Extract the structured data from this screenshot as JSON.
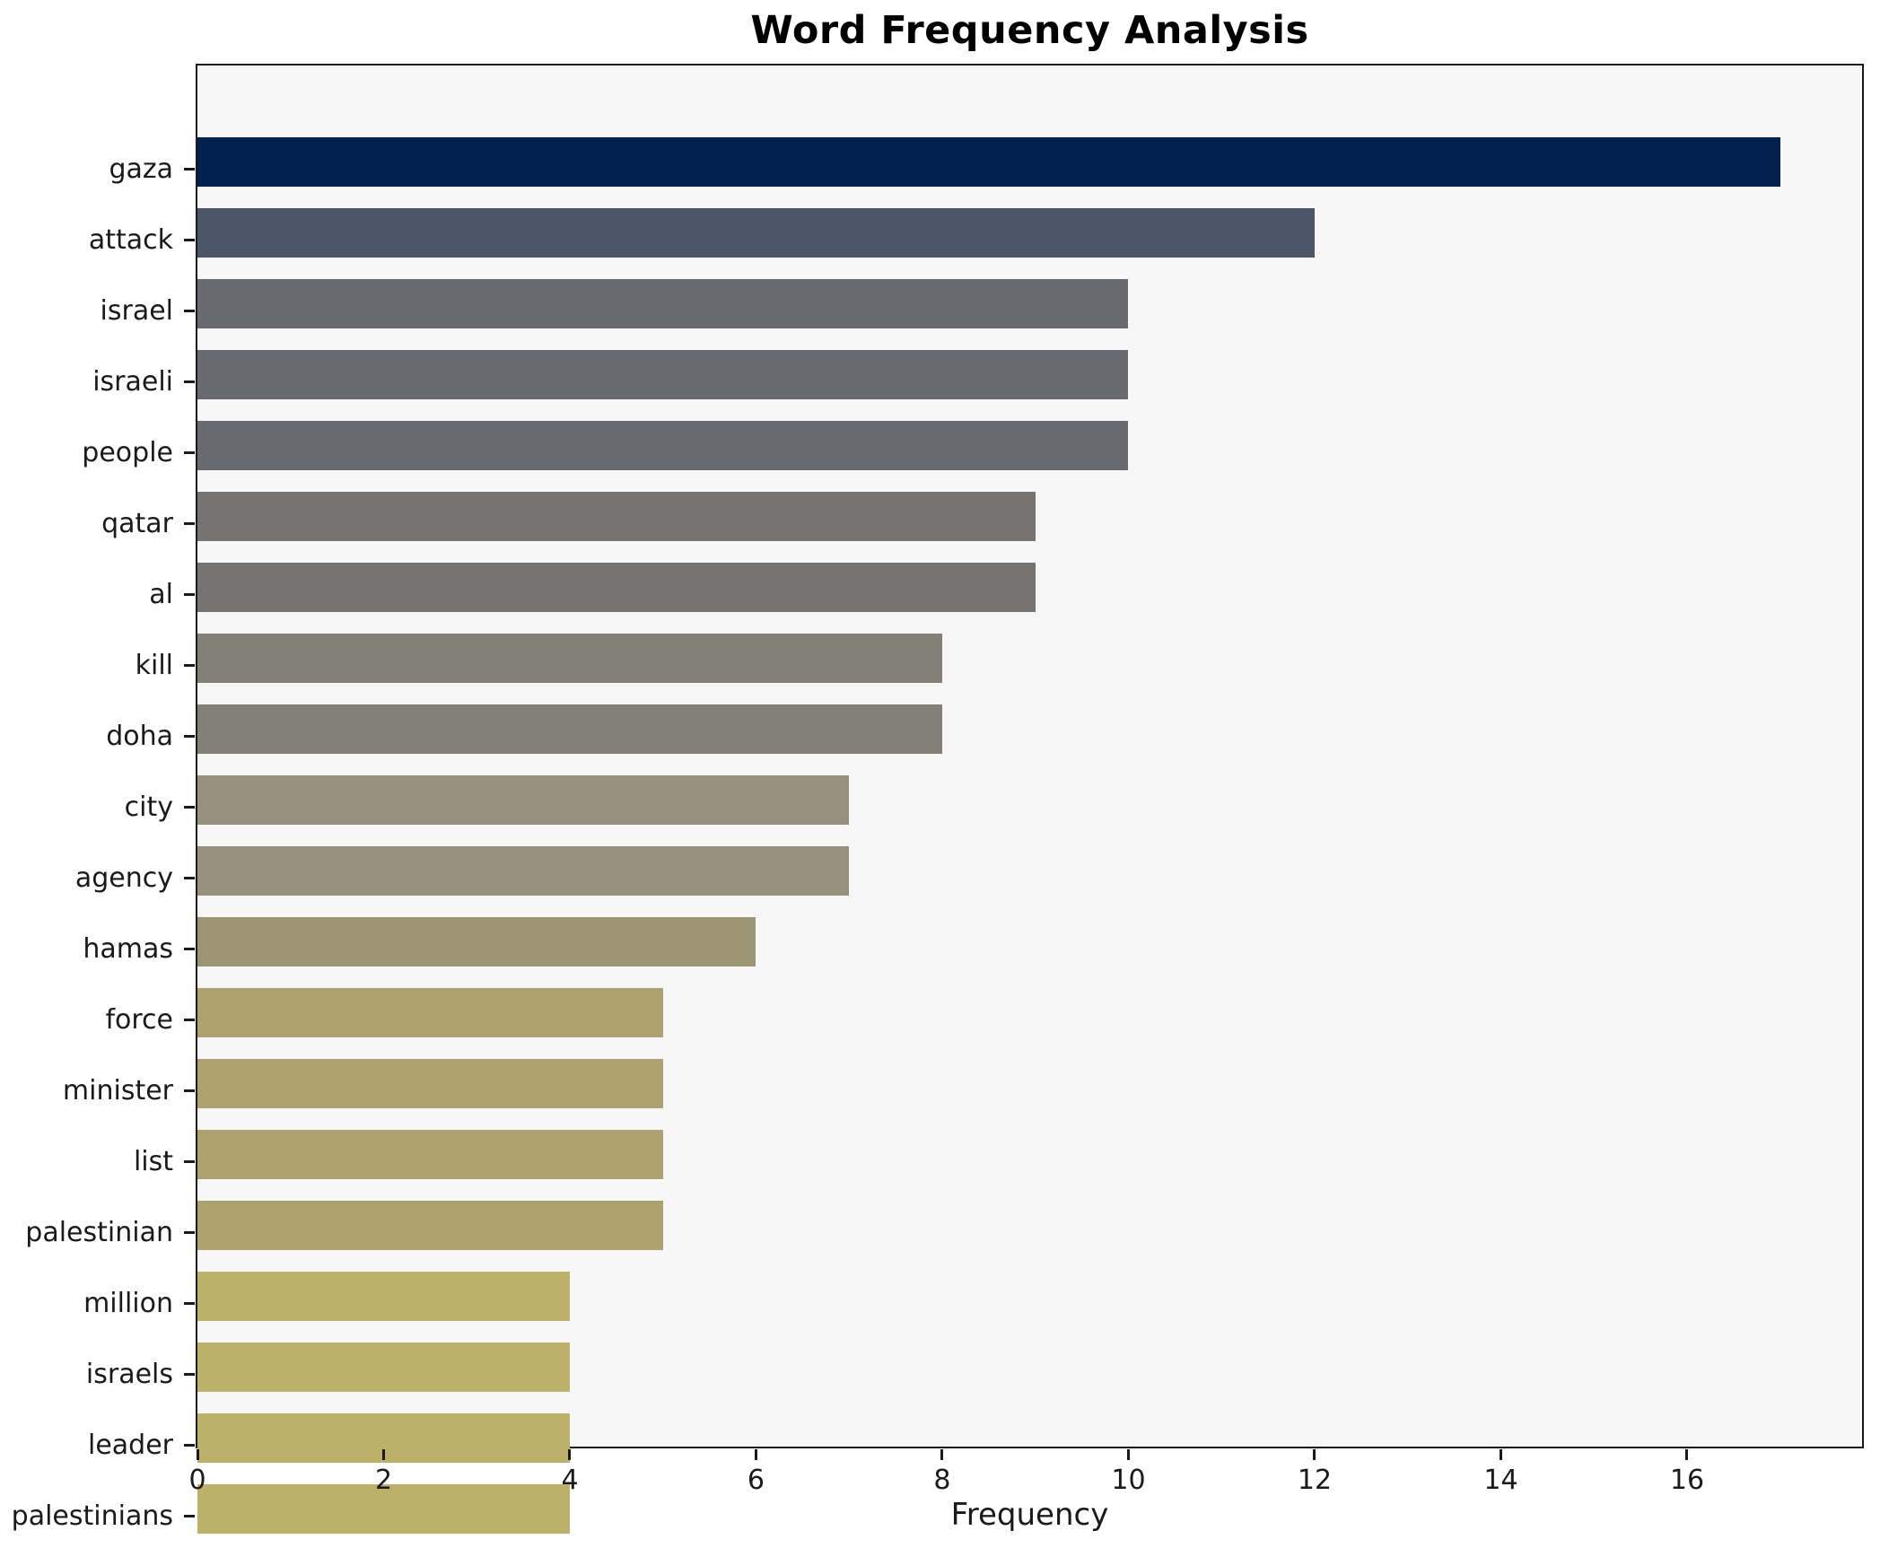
{
  "chart_data": {
    "type": "bar",
    "orientation": "horizontal",
    "title": "Word Frequency Analysis",
    "xlabel": "Frequency",
    "ylabel": "",
    "categories": [
      "gaza",
      "attack",
      "israel",
      "israeli",
      "people",
      "qatar",
      "al",
      "kill",
      "doha",
      "city",
      "agency",
      "hamas",
      "force",
      "minister",
      "list",
      "palestinian",
      "million",
      "israels",
      "leader",
      "palestinians"
    ],
    "values": [
      17,
      12,
      10,
      10,
      10,
      9,
      9,
      8,
      8,
      7,
      7,
      6,
      5,
      5,
      5,
      5,
      4,
      4,
      4,
      4
    ],
    "bar_colors": [
      "#01224d",
      "#4c5668",
      "#696a71",
      "#696a71",
      "#696a71",
      "#757472",
      "#757472",
      "#838078",
      "#838078",
      "#97917c",
      "#97917c",
      "#9c9573",
      "#aba26f",
      "#aba26f",
      "#aba26f",
      "#aba26f",
      "#bdb169",
      "#bdb169",
      "#bdb169",
      "#bdb169"
    ],
    "xlim": [
      0,
      17.88
    ],
    "xticks": [
      0,
      2,
      4,
      6,
      8,
      10,
      12,
      14,
      16
    ],
    "grid": false,
    "legend": "none",
    "plot_background": "#f7f7f7",
    "figure_background": "#ffffff",
    "spine_color": "#1a1a1a",
    "text_color": "#1a1a1a"
  }
}
